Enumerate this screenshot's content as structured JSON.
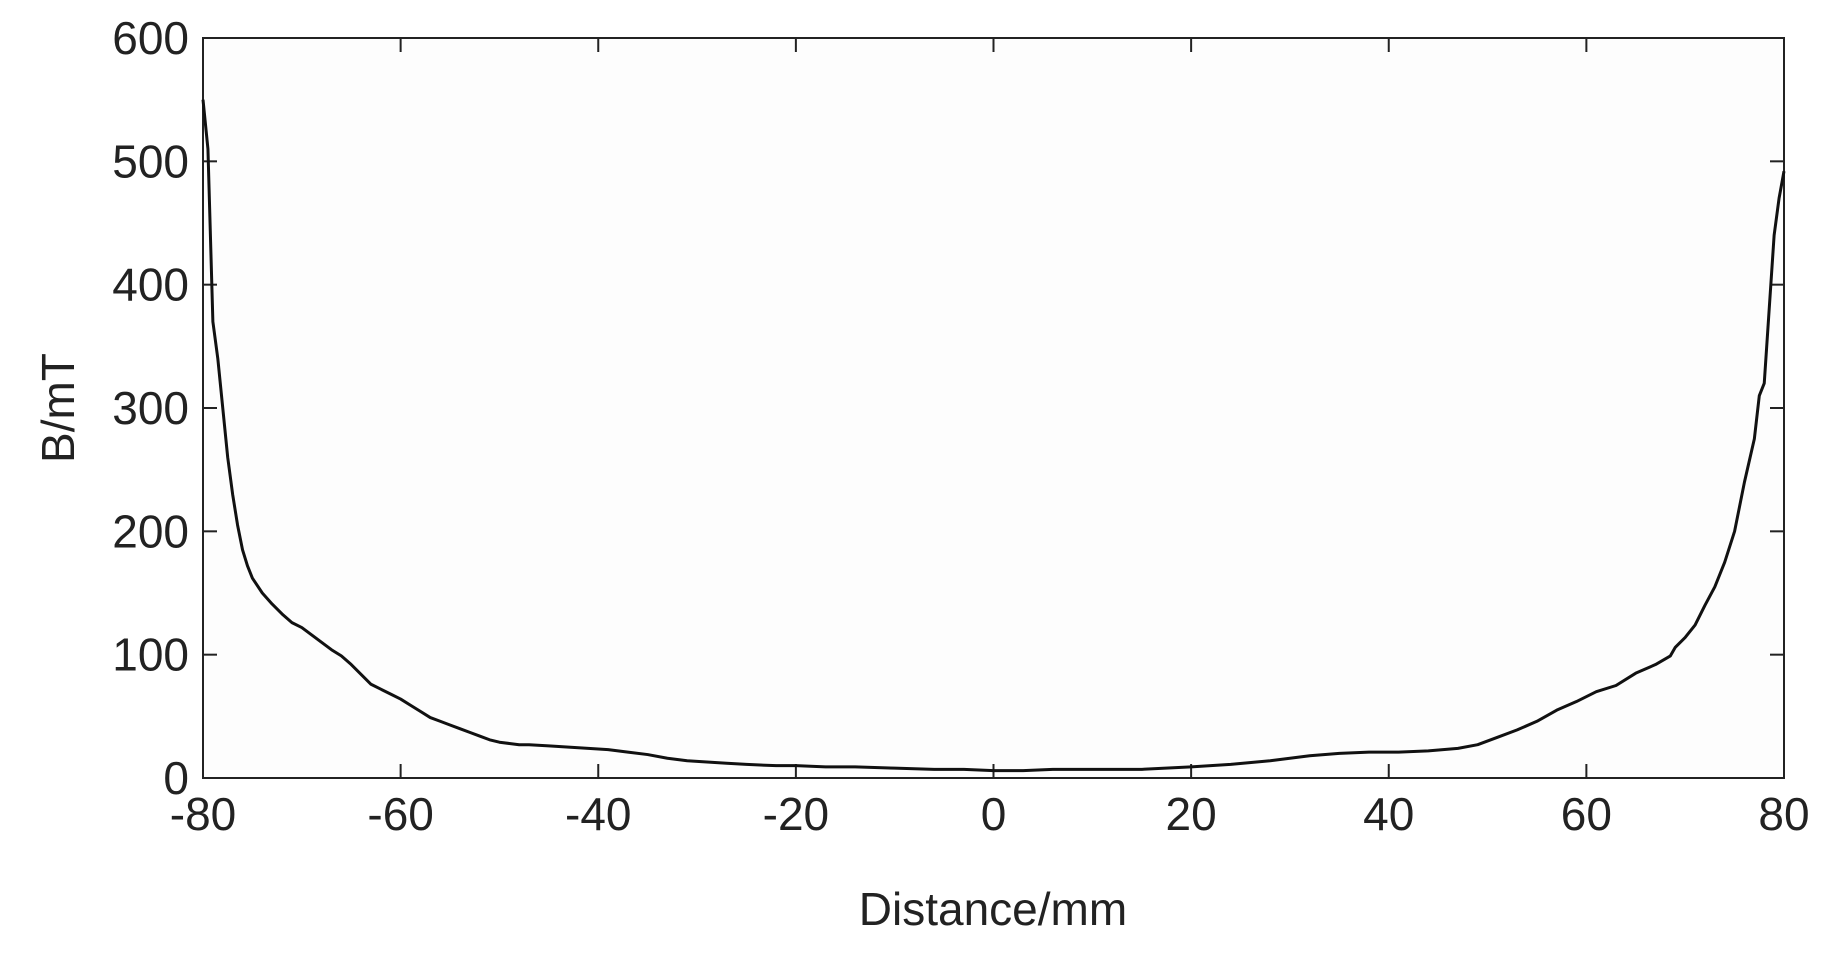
{
  "chart_data": {
    "type": "line",
    "x_label": "Distance/mm",
    "y_label": "B/mT",
    "xlim": [
      -80,
      80
    ],
    "xticks": [
      -80,
      -60,
      -40,
      -20,
      0,
      20,
      40,
      60,
      80
    ],
    "ylim": [
      0,
      600
    ],
    "yticks": [
      0,
      100,
      200,
      300,
      400,
      500,
      600
    ],
    "grid": false,
    "series": [
      {
        "color": "#111111",
        "x": [
          -80,
          -79.5,
          -79,
          -78.5,
          -78,
          -77.5,
          -77,
          -76.5,
          -76,
          -75.5,
          -75,
          -74,
          -73,
          -72,
          -71,
          -70,
          -69,
          -68,
          -67,
          -66,
          -65,
          -64,
          -63,
          -62,
          -61,
          -60,
          -59,
          -58,
          -57,
          -56,
          -55,
          -54,
          -53,
          -52,
          -51,
          -50,
          -49,
          -48,
          -47,
          -45,
          -43,
          -41,
          -39,
          -37,
          -35,
          -33,
          -31,
          -29,
          -27,
          -25,
          -22,
          -20,
          -17,
          -14,
          -10,
          -6,
          -3,
          0,
          3,
          6,
          10,
          15,
          20,
          24,
          28,
          32,
          35,
          38,
          41,
          44,
          47,
          49,
          51,
          53,
          55,
          57,
          59,
          61,
          63,
          65,
          67,
          68.5,
          69,
          70,
          71,
          72,
          73,
          74,
          75,
          76,
          77,
          77.5,
          78,
          78.5,
          79,
          79.5,
          80
        ],
        "values": [
          550,
          510,
          370,
          340,
          300,
          260,
          230,
          205,
          185,
          172,
          162,
          150,
          141,
          133,
          126,
          122,
          116,
          110,
          104,
          99,
          92,
          84,
          76,
          72,
          68,
          64,
          59,
          54,
          49,
          46,
          43,
          40,
          37,
          34,
          31,
          29,
          28,
          27,
          27,
          26,
          25,
          24,
          23,
          21,
          19,
          16,
          14,
          13,
          12,
          11,
          10,
          10,
          9,
          9,
          8,
          7,
          7,
          6,
          6,
          7,
          7,
          7,
          9,
          11,
          14,
          18,
          20,
          21,
          21,
          22,
          24,
          27,
          33,
          39,
          46,
          55,
          62,
          70,
          75,
          85,
          92,
          99,
          106,
          114,
          124,
          140,
          155,
          175,
          200,
          240,
          275,
          310,
          320,
          380,
          440,
          470,
          492
        ]
      }
    ]
  }
}
